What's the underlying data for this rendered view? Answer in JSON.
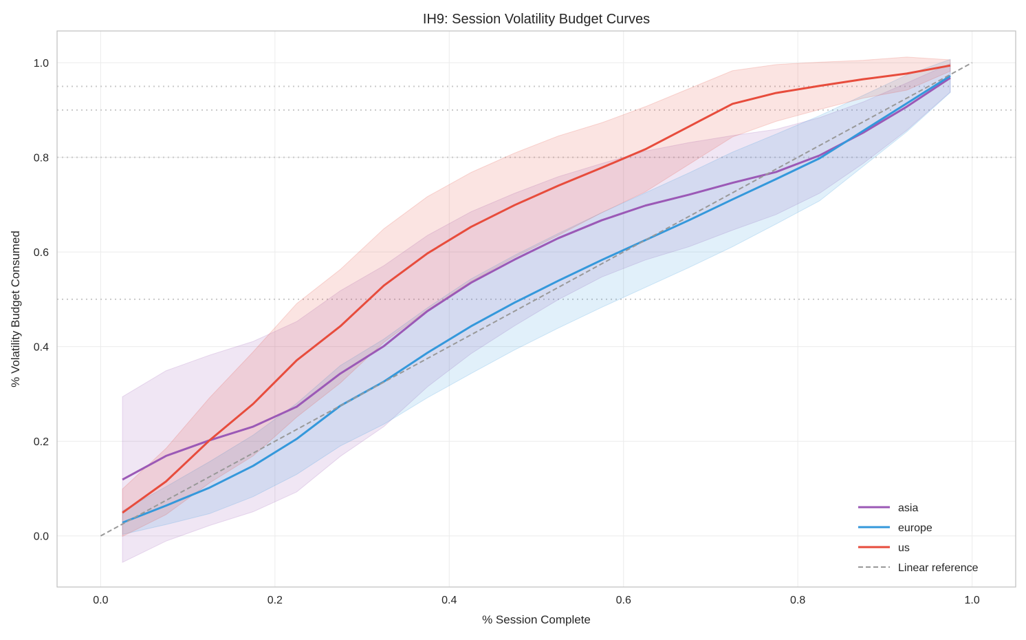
{
  "chart_data": {
    "type": "line",
    "title": "IH9: Session Volatility Budget Curves",
    "xlabel": "% Session Complete",
    "ylabel": "% Volatility Budget Consumed",
    "xlim": [
      -0.05,
      1.05
    ],
    "ylim": [
      -0.108,
      1.067
    ],
    "xticks": [
      0.0,
      0.2,
      0.4,
      0.6,
      0.8,
      1.0
    ],
    "xtick_labels": [
      "0.0",
      "0.2",
      "0.4",
      "0.6",
      "0.8",
      "1.0"
    ],
    "yticks": [
      0.0,
      0.2,
      0.4,
      0.6,
      0.8,
      1.0
    ],
    "ytick_labels": [
      "0.0",
      "0.2",
      "0.4",
      "0.6",
      "0.8",
      "1.0"
    ],
    "grid": true,
    "legend_placement": "lower-right",
    "threshold_lines": [
      0.5,
      0.8,
      0.9,
      0.95
    ],
    "x": [
      0.025,
      0.075,
      0.125,
      0.175,
      0.225,
      0.275,
      0.325,
      0.375,
      0.425,
      0.475,
      0.525,
      0.575,
      0.625,
      0.675,
      0.725,
      0.775,
      0.825,
      0.875,
      0.925,
      0.975
    ],
    "series": [
      {
        "name": "asia",
        "color": "#9b59b6",
        "values": [
          0.119,
          0.169,
          0.202,
          0.231,
          0.273,
          0.343,
          0.401,
          0.475,
          0.535,
          0.584,
          0.629,
          0.667,
          0.698,
          0.721,
          0.746,
          0.769,
          0.804,
          0.852,
          0.907,
          0.968
        ],
        "band_lower": [
          -0.056,
          -0.011,
          0.022,
          0.051,
          0.093,
          0.168,
          0.231,
          0.315,
          0.385,
          0.444,
          0.499,
          0.547,
          0.583,
          0.611,
          0.646,
          0.679,
          0.724,
          0.787,
          0.857,
          0.938
        ],
        "band_upper": [
          0.294,
          0.349,
          0.382,
          0.411,
          0.453,
          0.518,
          0.571,
          0.635,
          0.685,
          0.724,
          0.759,
          0.787,
          0.813,
          0.831,
          0.846,
          0.859,
          0.884,
          0.917,
          0.957,
          0.998
        ]
      },
      {
        "name": "europe",
        "color": "#3498db",
        "values": [
          0.028,
          0.064,
          0.102,
          0.148,
          0.205,
          0.275,
          0.326,
          0.387,
          0.443,
          0.493,
          0.539,
          0.583,
          0.625,
          0.667,
          0.711,
          0.754,
          0.798,
          0.856,
          0.914,
          0.972
        ],
        "band_lower": [
          0.003,
          0.024,
          0.047,
          0.083,
          0.13,
          0.19,
          0.236,
          0.292,
          0.343,
          0.393,
          0.439,
          0.483,
          0.525,
          0.567,
          0.611,
          0.659,
          0.708,
          0.781,
          0.854,
          0.937
        ],
        "band_upper": [
          0.053,
          0.104,
          0.157,
          0.213,
          0.28,
          0.36,
          0.416,
          0.482,
          0.543,
          0.593,
          0.639,
          0.683,
          0.725,
          0.767,
          0.811,
          0.849,
          0.888,
          0.931,
          0.974,
          1.007
        ]
      },
      {
        "name": "us",
        "color": "#e74c3c",
        "values": [
          0.049,
          0.115,
          0.202,
          0.279,
          0.371,
          0.443,
          0.529,
          0.597,
          0.653,
          0.699,
          0.74,
          0.778,
          0.817,
          0.865,
          0.913,
          0.936,
          0.951,
          0.965,
          0.977,
          0.994
        ],
        "band_lower": [
          -0.001,
          0.045,
          0.112,
          0.169,
          0.251,
          0.323,
          0.409,
          0.477,
          0.538,
          0.589,
          0.635,
          0.683,
          0.727,
          0.785,
          0.843,
          0.876,
          0.901,
          0.925,
          0.942,
          0.982
        ],
        "band_upper": [
          0.099,
          0.185,
          0.292,
          0.389,
          0.491,
          0.563,
          0.649,
          0.717,
          0.768,
          0.809,
          0.845,
          0.873,
          0.907,
          0.945,
          0.983,
          0.996,
          1.001,
          1.005,
          1.012,
          1.006
        ]
      }
    ],
    "reference": {
      "name": "Linear reference",
      "color": "#999999",
      "x": [
        0,
        1
      ],
      "values": [
        0,
        1
      ]
    }
  }
}
